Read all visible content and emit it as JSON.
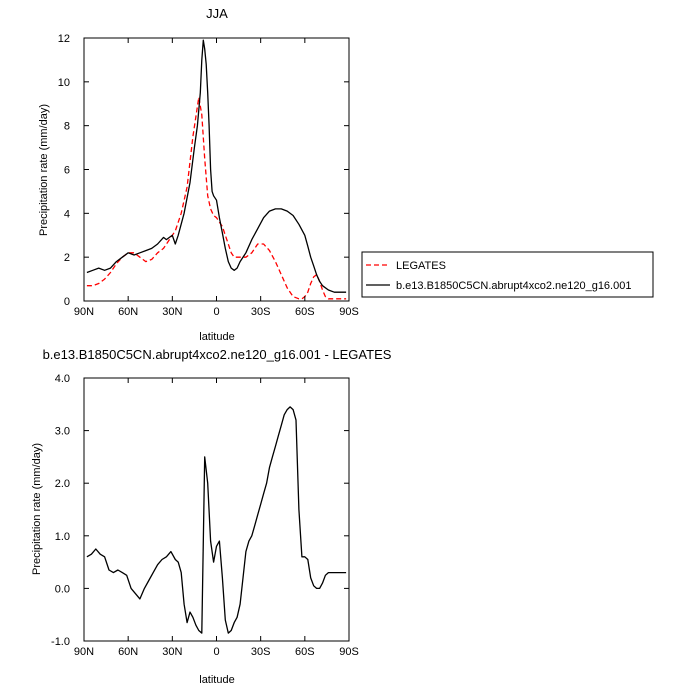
{
  "chart_data": [
    {
      "type": "line",
      "title": "JJA",
      "xlabel": "latitude",
      "ylabel": "Precipitation rate (mm/day)",
      "xlim": [
        90,
        -90
      ],
      "ylim": [
        0,
        12
      ],
      "x_ticks": [
        90,
        60,
        30,
        0,
        -30,
        -60,
        -90
      ],
      "x_tick_labels": [
        "90N",
        "60N",
        "30N",
        "0",
        "30S",
        "60S",
        "90S"
      ],
      "y_ticks": [
        0,
        2,
        4,
        6,
        8,
        10,
        12
      ],
      "y_tick_labels": [
        "0",
        "2",
        "4",
        "6",
        "8",
        "10",
        "12"
      ],
      "grid": false,
      "legend": {
        "placement": "right",
        "entries": [
          "LEGATES",
          "b.e13.B1850C5CN.abrupt4xco2.ne120_g16.001"
        ]
      },
      "series": [
        {
          "name": "LEGATES",
          "color": "#ff0000",
          "dash": "dashed",
          "x": [
            88,
            84,
            80,
            76,
            72,
            68,
            64,
            60,
            56,
            52,
            48,
            44,
            40,
            36,
            32,
            28,
            24,
            20,
            16,
            12,
            10,
            8,
            6,
            4,
            2,
            0,
            -2,
            -4,
            -6,
            -8,
            -10,
            -12,
            -14,
            -16,
            -20,
            -24,
            -28,
            -32,
            -36,
            -40,
            -44,
            -48,
            -52,
            -56,
            -58,
            -60,
            -62,
            -64,
            -66,
            -68,
            -70,
            -72,
            -74,
            -76,
            -80,
            -84,
            -88
          ],
          "y": [
            0.7,
            0.7,
            0.8,
            1.0,
            1.3,
            1.7,
            2.0,
            2.2,
            2.2,
            2.0,
            1.8,
            1.9,
            2.2,
            2.4,
            2.8,
            3.2,
            4.0,
            5.2,
            7.5,
            9.3,
            8.5,
            6.5,
            4.8,
            4.2,
            3.9,
            3.8,
            3.6,
            3.4,
            3.0,
            2.6,
            2.2,
            2.0,
            2.0,
            2.0,
            2.0,
            2.2,
            2.6,
            2.6,
            2.3,
            1.8,
            1.2,
            0.6,
            0.2,
            0.1,
            0.1,
            0.2,
            0.4,
            0.8,
            1.1,
            1.2,
            0.9,
            0.5,
            0.2,
            0.1,
            0.1,
            0.1,
            0.1
          ]
        },
        {
          "name": "b.e13.B1850C5CN.abrupt4xco2.ne120_g16.001",
          "color": "#000000",
          "dash": "solid",
          "x": [
            88,
            84,
            80,
            76,
            72,
            68,
            64,
            60,
            56,
            52,
            48,
            44,
            40,
            36,
            34,
            32,
            30,
            28,
            26,
            22,
            18,
            15,
            13,
            11,
            10,
            9,
            8,
            7,
            6,
            5,
            4,
            3,
            2,
            0,
            -2,
            -4,
            -6,
            -8,
            -10,
            -12,
            -14,
            -16,
            -20,
            -24,
            -28,
            -32,
            -36,
            -40,
            -44,
            -48,
            -52,
            -56,
            -60,
            -62,
            -64,
            -66,
            -68,
            -70,
            -72,
            -76,
            -80,
            -84,
            -88
          ],
          "y": [
            1.3,
            1.4,
            1.5,
            1.4,
            1.5,
            1.8,
            2.0,
            2.2,
            2.1,
            2.2,
            2.3,
            2.4,
            2.6,
            2.9,
            2.8,
            2.9,
            3.0,
            2.6,
            3.0,
            4.0,
            5.4,
            7.0,
            8.0,
            9.5,
            11.0,
            11.9,
            11.5,
            10.8,
            9.5,
            8.0,
            6.0,
            5.0,
            4.8,
            4.6,
            3.8,
            3.1,
            2.4,
            1.8,
            1.5,
            1.4,
            1.5,
            1.8,
            2.2,
            2.8,
            3.3,
            3.8,
            4.1,
            4.2,
            4.2,
            4.1,
            3.9,
            3.5,
            3.0,
            2.5,
            2.0,
            1.6,
            1.2,
            0.9,
            0.7,
            0.5,
            0.4,
            0.4,
            0.4
          ]
        }
      ]
    },
    {
      "type": "line",
      "title": "b.e13.B1850C5CN.abrupt4xco2.ne120_g16.001 - LEGATES",
      "xlabel": "latitude",
      "ylabel": "Precipitation rate (mm/day)",
      "xlim": [
        90,
        -90
      ],
      "ylim": [
        -1.0,
        4.0
      ],
      "x_ticks": [
        90,
        60,
        30,
        0,
        -30,
        -60,
        -90
      ],
      "x_tick_labels": [
        "90N",
        "60N",
        "30N",
        "0",
        "30S",
        "60S",
        "90S"
      ],
      "y_ticks": [
        -1,
        0,
        1,
        2,
        3,
        4
      ],
      "y_tick_labels": [
        "-1.0",
        "0.0",
        "1.0",
        "2.0",
        "3.0",
        "4.0"
      ],
      "grid": false,
      "series": [
        {
          "color": "#000000",
          "dash": "solid",
          "x": [
            88,
            85,
            82,
            79,
            76,
            73,
            70,
            67,
            64,
            61,
            58,
            55,
            52,
            49,
            46,
            43,
            40,
            37,
            34,
            31,
            28,
            26,
            24,
            22,
            20,
            18,
            16,
            14,
            12,
            10,
            8,
            6,
            4,
            2,
            0,
            -2,
            -4,
            -6,
            -8,
            -10,
            -12,
            -14,
            -16,
            -18,
            -20,
            -22,
            -24,
            -26,
            -28,
            -30,
            -32,
            -34,
            -36,
            -38,
            -40,
            -42,
            -44,
            -46,
            -48,
            -50,
            -52,
            -54,
            -56,
            -58,
            -60,
            -62,
            -64,
            -66,
            -68,
            -70,
            -72,
            -74,
            -76,
            -78,
            -80,
            -82,
            -84,
            -86,
            -88
          ],
          "y": [
            0.6,
            0.65,
            0.75,
            0.65,
            0.6,
            0.35,
            0.3,
            0.35,
            0.3,
            0.25,
            0.0,
            -0.1,
            -0.2,
            0.0,
            0.15,
            0.3,
            0.45,
            0.55,
            0.6,
            0.7,
            0.55,
            0.5,
            0.3,
            -0.3,
            -0.65,
            -0.45,
            -0.55,
            -0.7,
            -0.8,
            -0.85,
            2.5,
            2.0,
            0.9,
            0.5,
            0.8,
            0.9,
            0.2,
            -0.6,
            -0.85,
            -0.8,
            -0.65,
            -0.55,
            -0.3,
            0.2,
            0.7,
            0.9,
            1.0,
            1.2,
            1.4,
            1.6,
            1.8,
            2.0,
            2.3,
            2.5,
            2.7,
            2.9,
            3.1,
            3.3,
            3.4,
            3.45,
            3.4,
            3.2,
            1.5,
            0.6,
            0.6,
            0.55,
            0.2,
            0.05,
            0.0,
            0.0,
            0.1,
            0.25,
            0.3,
            0.3,
            0.3,
            0.3,
            0.3,
            0.3,
            0.3
          ]
        }
      ]
    }
  ]
}
